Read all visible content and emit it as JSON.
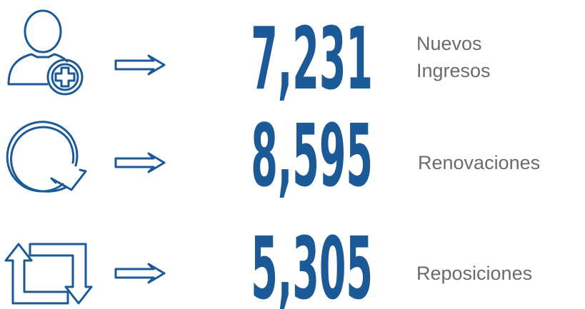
{
  "items": [
    {
      "value": "7,231",
      "label": [
        "Nuevos",
        "Ingresos"
      ]
    },
    {
      "value": "8,595",
      "label": [
        "Renovaciones"
      ]
    },
    {
      "value": "5,305",
      "label": [
        "Reposiciones"
      ]
    }
  ]
}
